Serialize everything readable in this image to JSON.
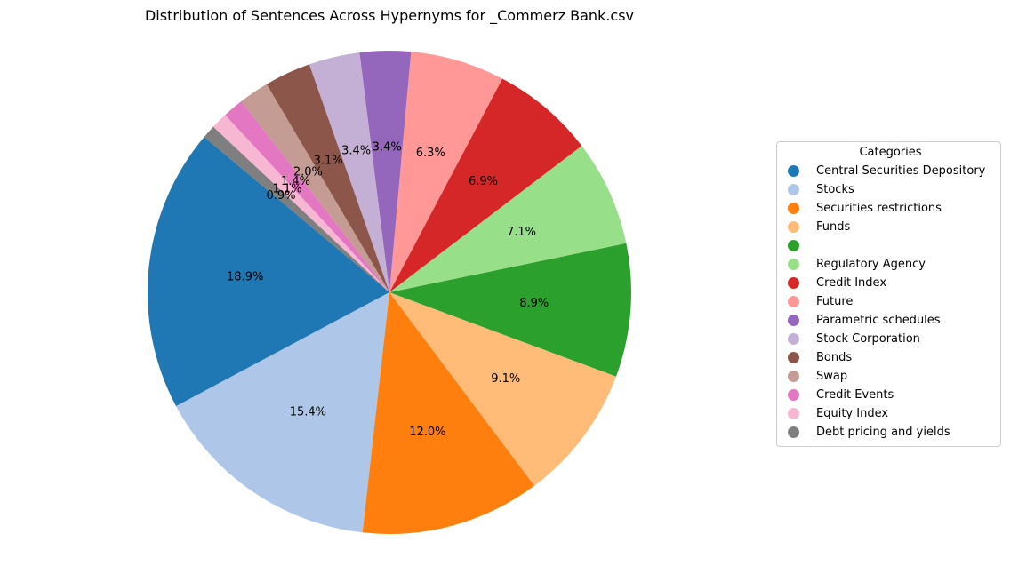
{
  "chart_data": {
    "type": "pie",
    "title": "Distribution of Sentences Across Hypernyms for _Commerz Bank.csv",
    "legend_title": "Categories",
    "legend_position": "right",
    "start_angle_deg": 140,
    "direction": "counterclockwise",
    "slices": [
      {
        "label": "Central Securities Depository",
        "pct_label": "18.9%",
        "value": 18.9,
        "color": "#1f77b4"
      },
      {
        "label": "Stocks",
        "pct_label": "15.4%",
        "value": 15.4,
        "color": "#aec7e8"
      },
      {
        "label": "Securities restrictions",
        "pct_label": "12.0%",
        "value": 12.0,
        "color": "#ff7f0e"
      },
      {
        "label": "Funds",
        "pct_label": "9.1%",
        "value": 9.1,
        "color": "#ffbb78"
      },
      {
        "label": "",
        "pct_label": "8.9%",
        "value": 8.9,
        "color": "#2ca02c"
      },
      {
        "label": "Regulatory Agency",
        "pct_label": "7.1%",
        "value": 7.1,
        "color": "#98df8a"
      },
      {
        "label": "Credit Index",
        "pct_label": "6.9%",
        "value": 6.9,
        "color": "#d62728"
      },
      {
        "label": "Future",
        "pct_label": "6.3%",
        "value": 6.3,
        "color": "#ff9896"
      },
      {
        "label": "Parametric schedules",
        "pct_label": "3.4%",
        "value": 3.4,
        "color": "#9467bd"
      },
      {
        "label": "Stock Corporation",
        "pct_label": "3.4%",
        "value": 3.4,
        "color": "#c5b0d5"
      },
      {
        "label": "Bonds",
        "pct_label": "3.1%",
        "value": 3.1,
        "color": "#8c564b"
      },
      {
        "label": "Swap",
        "pct_label": "2.0%",
        "value": 2.0,
        "color": "#c49c94"
      },
      {
        "label": "Credit Events",
        "pct_label": "1.4%",
        "value": 1.4,
        "color": "#e377c2"
      },
      {
        "label": "Equity Index",
        "pct_label": "1.1%",
        "value": 1.1,
        "color": "#f7b6d2"
      },
      {
        "label": "Debt pricing and yields",
        "pct_label": "0.9%",
        "value": 0.9,
        "color": "#7f7f7f"
      }
    ]
  }
}
